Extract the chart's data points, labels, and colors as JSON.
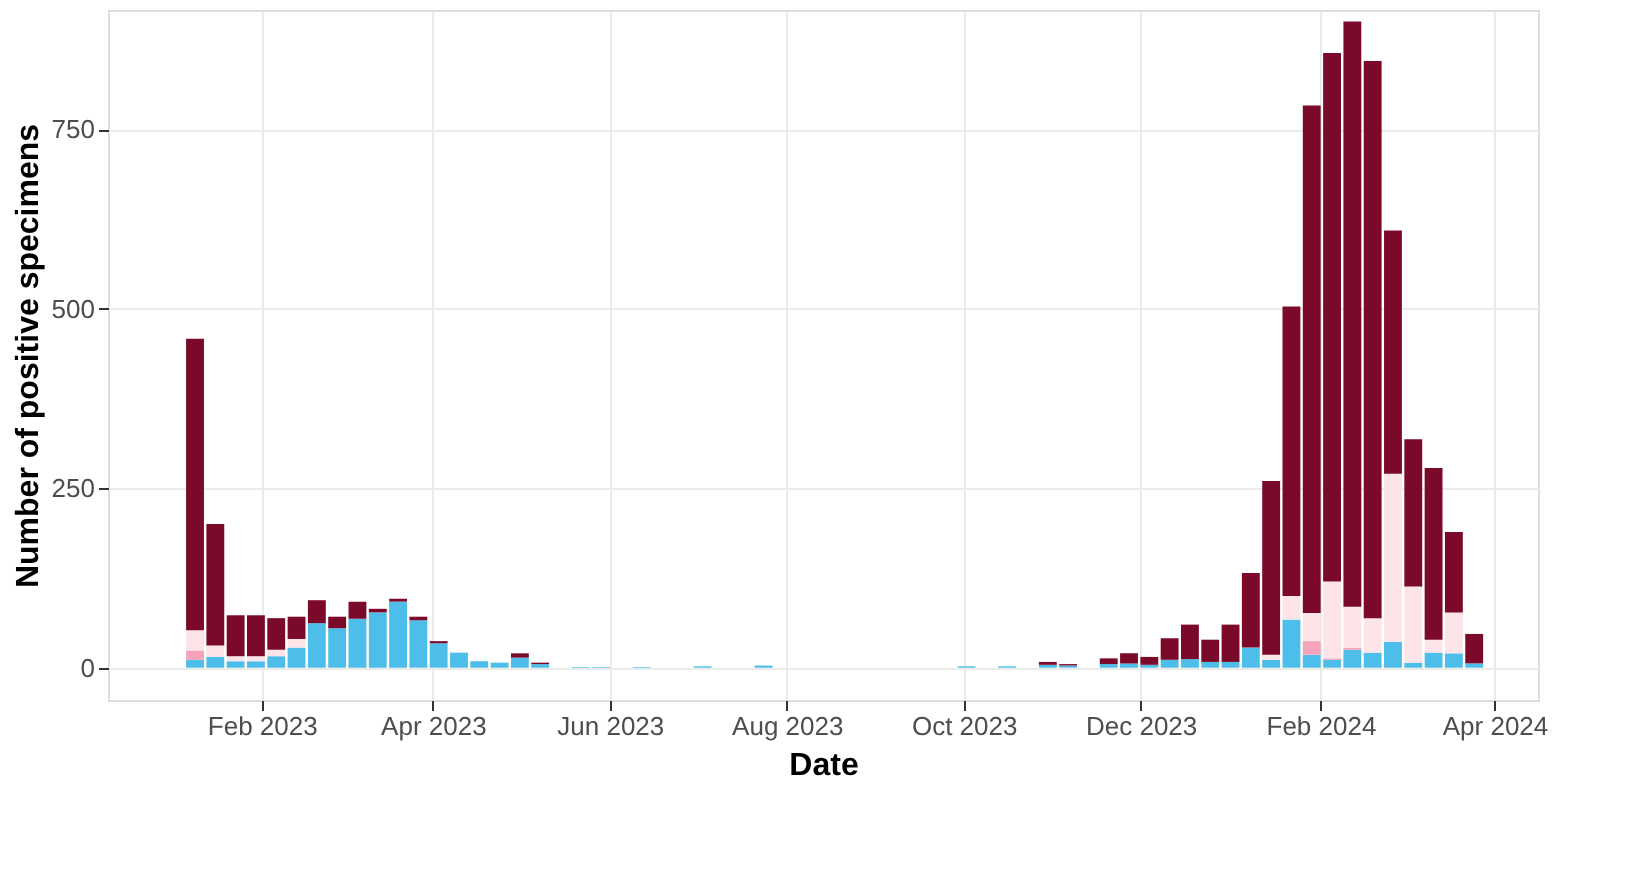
{
  "chart_data": {
    "type": "bar",
    "stacked": true,
    "xlabel": "Date",
    "ylabel": "Number of positive specimens",
    "x": [
      "2023-01-09",
      "2023-01-16",
      "2023-01-23",
      "2023-01-30",
      "2023-02-06",
      "2023-02-13",
      "2023-02-20",
      "2023-02-27",
      "2023-03-06",
      "2023-03-13",
      "2023-03-20",
      "2023-03-27",
      "2023-04-03",
      "2023-04-10",
      "2023-04-17",
      "2023-04-24",
      "2023-05-01",
      "2023-05-08",
      "2023-05-15",
      "2023-05-22",
      "2023-05-29",
      "2023-06-05",
      "2023-06-12",
      "2023-06-19",
      "2023-06-26",
      "2023-07-03",
      "2023-07-10",
      "2023-07-17",
      "2023-07-24",
      "2023-07-31",
      "2023-08-07",
      "2023-08-14",
      "2023-08-21",
      "2023-08-28",
      "2023-09-04",
      "2023-09-11",
      "2023-09-18",
      "2023-09-25",
      "2023-10-02",
      "2023-10-09",
      "2023-10-16",
      "2023-10-23",
      "2023-10-30",
      "2023-11-06",
      "2023-11-13",
      "2023-11-20",
      "2023-11-27",
      "2023-12-04",
      "2023-12-11",
      "2023-12-18",
      "2023-12-25",
      "2024-01-01",
      "2024-01-08",
      "2024-01-15",
      "2024-01-22",
      "2024-01-29",
      "2024-02-05",
      "2024-02-12",
      "2024-02-19",
      "2024-02-26",
      "2024-03-04",
      "2024-03-11",
      "2024-03-18",
      "2024-03-25"
    ],
    "series": [
      {
        "color": "#4dbeea",
        "values": [
          11,
          15,
          9,
          9,
          16,
          28,
          62,
          55,
          68,
          77,
          92,
          66,
          34,
          21,
          9,
          7,
          14,
          5,
          0,
          1,
          1,
          0,
          1,
          0,
          0,
          2,
          0,
          0,
          3,
          0,
          0,
          0,
          0,
          0,
          0,
          0,
          0,
          0,
          2,
          0,
          2,
          0,
          4,
          3,
          0,
          5,
          6,
          4,
          11,
          12,
          8,
          8,
          28,
          11,
          67,
          18,
          11,
          25,
          21,
          36,
          7,
          21,
          20,
          6
        ]
      },
      {
        "color": "#f4a3bb",
        "values": [
          13,
          0,
          0,
          0,
          0,
          0,
          0,
          0,
          0,
          0,
          0,
          0,
          0,
          0,
          0,
          0,
          0,
          0,
          0,
          0,
          0,
          0,
          0,
          0,
          0,
          0,
          0,
          0,
          0,
          0,
          0,
          0,
          0,
          0,
          0,
          0,
          0,
          0,
          0,
          0,
          0,
          0,
          0,
          0,
          0,
          0,
          0,
          0,
          0,
          0,
          0,
          0,
          0,
          0,
          0,
          19,
          2,
          3,
          0,
          0,
          0,
          0,
          0,
          0
        ]
      },
      {
        "color": "#fde4e8",
        "values": [
          28,
          16,
          7,
          7,
          9,
          12,
          null,
          0,
          0,
          0,
          0,
          0,
          0,
          0,
          0,
          0,
          0,
          0,
          0,
          0,
          0,
          0,
          0,
          0,
          0,
          0,
          0,
          0,
          0,
          0,
          0,
          0,
          0,
          0,
          0,
          0,
          0,
          0,
          0,
          0,
          0,
          0,
          0,
          0,
          0,
          0,
          0,
          0,
          0,
          0,
          0,
          0,
          0,
          7,
          33,
          39,
          107,
          57,
          48,
          234,
          106,
          18,
          57,
          0
        ]
      },
      {
        "color": "#7b0a2a",
        "values": [
          406,
          169,
          57,
          57,
          44,
          31,
          32,
          16,
          24,
          5,
          4,
          5,
          3,
          0,
          0,
          0,
          6,
          2,
          0,
          0,
          0,
          0,
          0,
          0,
          0,
          0,
          0,
          0,
          0,
          0,
          0,
          0,
          0,
          0,
          0,
          0,
          0,
          0,
          0,
          0,
          0,
          0,
          4,
          2,
          0,
          8,
          14,
          11,
          30,
          48,
          31,
          52,
          104,
          242,
          403,
          707,
          736,
          815,
          776,
          339,
          205,
          239,
          112,
          41
        ]
      }
    ],
    "xlim": [
      "2022-12-10",
      "2024-04-16"
    ],
    "xticks": [
      {
        "value": "2023-02-01",
        "label": "Feb 2023"
      },
      {
        "value": "2023-04-01",
        "label": "Apr 2023"
      },
      {
        "value": "2023-06-01",
        "label": "Jun 2023"
      },
      {
        "value": "2023-08-01",
        "label": "Aug 2023"
      },
      {
        "value": "2023-10-01",
        "label": "Oct 2023"
      },
      {
        "value": "2023-12-01",
        "label": "Dec 2023"
      },
      {
        "value": "2024-02-01",
        "label": "Feb 2024"
      },
      {
        "value": "2024-04-01",
        "label": "Apr 2024"
      }
    ],
    "ylim": [
      -45,
      916
    ],
    "yticks": [
      0,
      250,
      500,
      750
    ],
    "grid": true,
    "legend": false
  }
}
